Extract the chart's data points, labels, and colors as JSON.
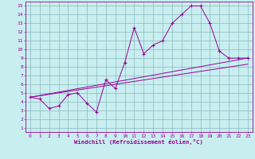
{
  "xlabel": "Windchill (Refroidissement éolien,°C)",
  "bg_color": "#c8eef0",
  "grid_color": "#8ab8bc",
  "line_color": "#990099",
  "xlim": [
    -0.5,
    23.5
  ],
  "ylim": [
    0.5,
    15.5
  ],
  "xticks": [
    0,
    1,
    2,
    3,
    4,
    5,
    6,
    7,
    8,
    9,
    10,
    11,
    12,
    13,
    14,
    15,
    16,
    17,
    18,
    19,
    20,
    21,
    22,
    23
  ],
  "yticks": [
    1,
    2,
    3,
    4,
    5,
    6,
    7,
    8,
    9,
    10,
    11,
    12,
    13,
    14,
    15
  ],
  "line1_x": [
    0,
    1,
    2,
    3,
    4,
    5,
    6,
    7,
    8,
    9,
    10,
    11,
    12,
    13,
    14,
    15,
    16,
    17,
    18,
    19,
    20,
    21,
    22,
    23
  ],
  "line1_y": [
    4.5,
    4.3,
    3.2,
    3.5,
    4.8,
    5.0,
    3.8,
    2.8,
    6.5,
    5.5,
    8.5,
    12.5,
    9.5,
    10.5,
    11.0,
    13.0,
    14.0,
    15.0,
    15.0,
    13.0,
    9.8,
    9.0,
    9.0,
    9.0
  ],
  "line2_x": [
    0,
    23
  ],
  "line2_y": [
    4.5,
    9.0
  ],
  "line3_x": [
    0,
    23
  ],
  "line3_y": [
    4.5,
    8.3
  ]
}
